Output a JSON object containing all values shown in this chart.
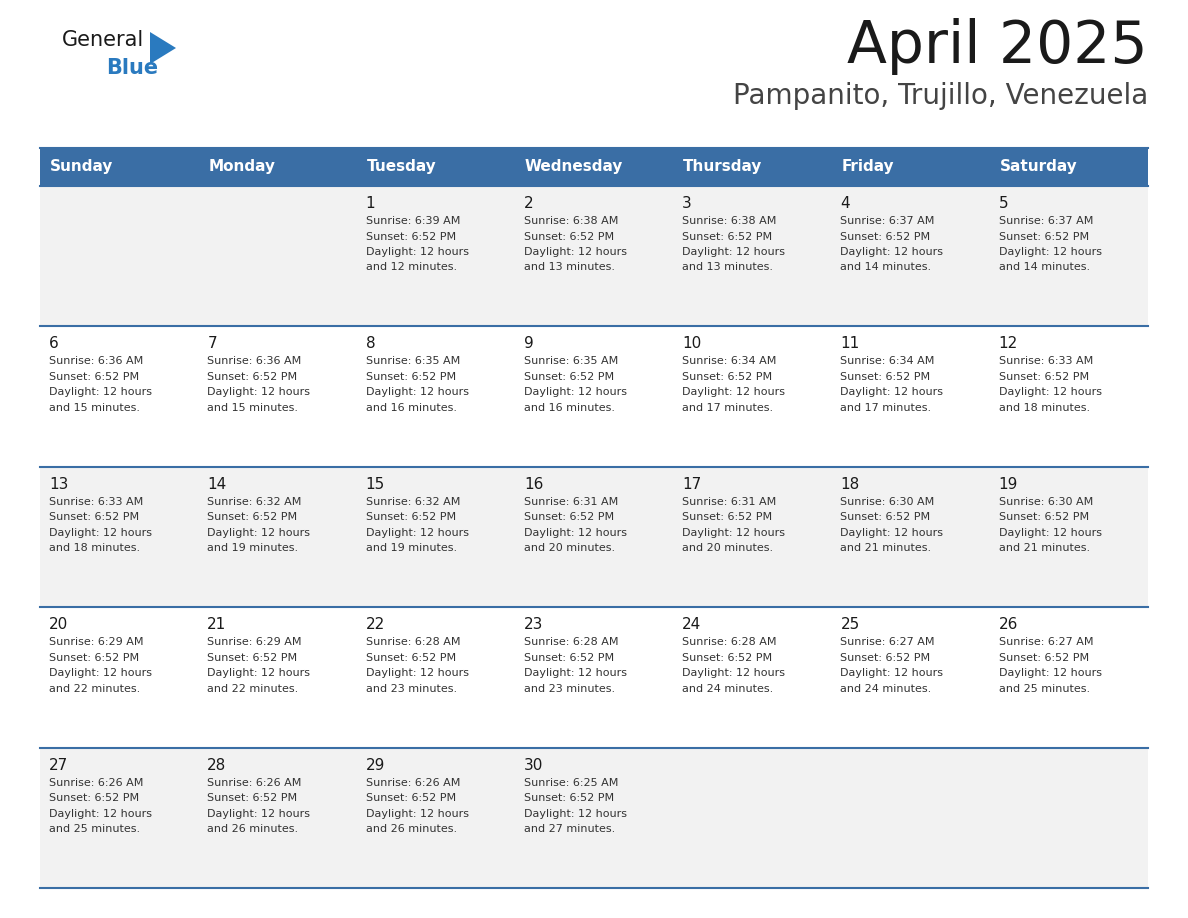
{
  "title": "April 2025",
  "subtitle": "Pampanito, Trujillo, Venezuela",
  "header_bg_color": "#3a6ea5",
  "header_text_color": "#ffffff",
  "row_bg_color_odd": "#f2f2f2",
  "row_bg_color_even": "#ffffff",
  "separator_color": "#3a6ea5",
  "day_headers": [
    "Sunday",
    "Monday",
    "Tuesday",
    "Wednesday",
    "Thursday",
    "Friday",
    "Saturday"
  ],
  "weeks": [
    [
      {
        "day": "",
        "sunrise": "",
        "sunset": "",
        "daylight": ""
      },
      {
        "day": "",
        "sunrise": "",
        "sunset": "",
        "daylight": ""
      },
      {
        "day": "1",
        "sunrise": "6:39 AM",
        "sunset": "6:52 PM",
        "daylight": "12 hours and 12 minutes."
      },
      {
        "day": "2",
        "sunrise": "6:38 AM",
        "sunset": "6:52 PM",
        "daylight": "12 hours and 13 minutes."
      },
      {
        "day": "3",
        "sunrise": "6:38 AM",
        "sunset": "6:52 PM",
        "daylight": "12 hours and 13 minutes."
      },
      {
        "day": "4",
        "sunrise": "6:37 AM",
        "sunset": "6:52 PM",
        "daylight": "12 hours and 14 minutes."
      },
      {
        "day": "5",
        "sunrise": "6:37 AM",
        "sunset": "6:52 PM",
        "daylight": "12 hours and 14 minutes."
      }
    ],
    [
      {
        "day": "6",
        "sunrise": "6:36 AM",
        "sunset": "6:52 PM",
        "daylight": "12 hours and 15 minutes."
      },
      {
        "day": "7",
        "sunrise": "6:36 AM",
        "sunset": "6:52 PM",
        "daylight": "12 hours and 15 minutes."
      },
      {
        "day": "8",
        "sunrise": "6:35 AM",
        "sunset": "6:52 PM",
        "daylight": "12 hours and 16 minutes."
      },
      {
        "day": "9",
        "sunrise": "6:35 AM",
        "sunset": "6:52 PM",
        "daylight": "12 hours and 16 minutes."
      },
      {
        "day": "10",
        "sunrise": "6:34 AM",
        "sunset": "6:52 PM",
        "daylight": "12 hours and 17 minutes."
      },
      {
        "day": "11",
        "sunrise": "6:34 AM",
        "sunset": "6:52 PM",
        "daylight": "12 hours and 17 minutes."
      },
      {
        "day": "12",
        "sunrise": "6:33 AM",
        "sunset": "6:52 PM",
        "daylight": "12 hours and 18 minutes."
      }
    ],
    [
      {
        "day": "13",
        "sunrise": "6:33 AM",
        "sunset": "6:52 PM",
        "daylight": "12 hours and 18 minutes."
      },
      {
        "day": "14",
        "sunrise": "6:32 AM",
        "sunset": "6:52 PM",
        "daylight": "12 hours and 19 minutes."
      },
      {
        "day": "15",
        "sunrise": "6:32 AM",
        "sunset": "6:52 PM",
        "daylight": "12 hours and 19 minutes."
      },
      {
        "day": "16",
        "sunrise": "6:31 AM",
        "sunset": "6:52 PM",
        "daylight": "12 hours and 20 minutes."
      },
      {
        "day": "17",
        "sunrise": "6:31 AM",
        "sunset": "6:52 PM",
        "daylight": "12 hours and 20 minutes."
      },
      {
        "day": "18",
        "sunrise": "6:30 AM",
        "sunset": "6:52 PM",
        "daylight": "12 hours and 21 minutes."
      },
      {
        "day": "19",
        "sunrise": "6:30 AM",
        "sunset": "6:52 PM",
        "daylight": "12 hours and 21 minutes."
      }
    ],
    [
      {
        "day": "20",
        "sunrise": "6:29 AM",
        "sunset": "6:52 PM",
        "daylight": "12 hours and 22 minutes."
      },
      {
        "day": "21",
        "sunrise": "6:29 AM",
        "sunset": "6:52 PM",
        "daylight": "12 hours and 22 minutes."
      },
      {
        "day": "22",
        "sunrise": "6:28 AM",
        "sunset": "6:52 PM",
        "daylight": "12 hours and 23 minutes."
      },
      {
        "day": "23",
        "sunrise": "6:28 AM",
        "sunset": "6:52 PM",
        "daylight": "12 hours and 23 minutes."
      },
      {
        "day": "24",
        "sunrise": "6:28 AM",
        "sunset": "6:52 PM",
        "daylight": "12 hours and 24 minutes."
      },
      {
        "day": "25",
        "sunrise": "6:27 AM",
        "sunset": "6:52 PM",
        "daylight": "12 hours and 24 minutes."
      },
      {
        "day": "26",
        "sunrise": "6:27 AM",
        "sunset": "6:52 PM",
        "daylight": "12 hours and 25 minutes."
      }
    ],
    [
      {
        "day": "27",
        "sunrise": "6:26 AM",
        "sunset": "6:52 PM",
        "daylight": "12 hours and 25 minutes."
      },
      {
        "day": "28",
        "sunrise": "6:26 AM",
        "sunset": "6:52 PM",
        "daylight": "12 hours and 26 minutes."
      },
      {
        "day": "29",
        "sunrise": "6:26 AM",
        "sunset": "6:52 PM",
        "daylight": "12 hours and 26 minutes."
      },
      {
        "day": "30",
        "sunrise": "6:25 AM",
        "sunset": "6:52 PM",
        "daylight": "12 hours and 27 minutes."
      },
      {
        "day": "",
        "sunrise": "",
        "sunset": "",
        "daylight": ""
      },
      {
        "day": "",
        "sunrise": "",
        "sunset": "",
        "daylight": ""
      },
      {
        "day": "",
        "sunrise": "",
        "sunset": "",
        "daylight": ""
      }
    ]
  ],
  "logo_general_color": "#1a1a1a",
  "logo_blue_color": "#2a7abf",
  "logo_triangle_color": "#2a7abf",
  "title_color": "#1a1a1a",
  "subtitle_color": "#444444"
}
